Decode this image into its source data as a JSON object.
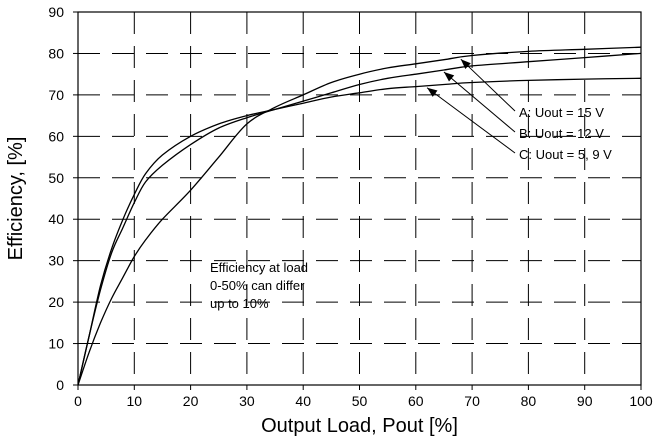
{
  "chart_data": {
    "type": "line",
    "xlabel": "Output Load, Pout [%]",
    "ylabel": "Efficiency, [%]",
    "xlim": [
      0,
      100
    ],
    "ylim": [
      0,
      90
    ],
    "x_ticks": [
      "0",
      "10",
      "20",
      "30",
      "40",
      "50",
      "60",
      "70",
      "80",
      "90",
      "100"
    ],
    "y_ticks": [
      "0",
      "10",
      "20",
      "30",
      "40",
      "50",
      "60",
      "70",
      "80",
      "90"
    ],
    "grid": true,
    "series": [
      {
        "name": "A: Uout = 15 V",
        "x": [
          0,
          2,
          4,
          6,
          8,
          10,
          12,
          15,
          20,
          25,
          30,
          35,
          40,
          45,
          50,
          55,
          60,
          65,
          70,
          80,
          90,
          100
        ],
        "y": [
          0,
          8,
          15,
          21,
          26,
          31,
          35,
          40,
          47,
          55,
          63,
          67,
          70,
          73,
          75,
          76.5,
          77.5,
          78.5,
          79.5,
          80.5,
          81,
          81.5
        ]
      },
      {
        "name": "B: Uout = 12 V",
        "x": [
          0,
          2,
          4,
          6,
          8,
          10,
          12,
          15,
          20,
          25,
          30,
          35,
          40,
          45,
          50,
          55,
          60,
          65,
          70,
          80,
          90,
          100
        ],
        "y": [
          0,
          12,
          23,
          32,
          38,
          44,
          49,
          53,
          58,
          62,
          64.5,
          66.5,
          68.5,
          70.5,
          72.5,
          74,
          75,
          76,
          77,
          78,
          79,
          80
        ]
      },
      {
        "name": "C: Uout = 5, 9 V",
        "x": [
          0,
          2,
          4,
          6,
          8,
          10,
          12,
          15,
          20,
          25,
          30,
          35,
          40,
          45,
          50,
          55,
          60,
          65,
          70,
          80,
          90,
          100
        ],
        "y": [
          0,
          12,
          24,
          33,
          40,
          46,
          51,
          55.5,
          60,
          63,
          65,
          66.5,
          68,
          69.5,
          70.5,
          71.5,
          72,
          72.5,
          73,
          73.5,
          73.8,
          74
        ]
      }
    ],
    "legend": {
      "placement": "callout-right",
      "entries": [
        "A: Uout = 15 V",
        "B: Uout = 12 V",
        "C: Uout = 5, 9 V"
      ]
    },
    "annotations": {
      "note_lines": [
        "Efficiency at load",
        "0-50% can differ",
        "up to 10%"
      ]
    }
  }
}
